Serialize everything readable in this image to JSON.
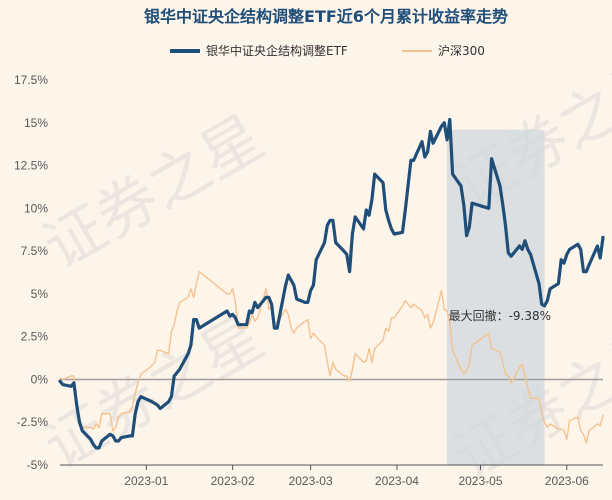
{
  "chart_data": {
    "type": "line",
    "title": "银华中证央企结构调整ETF近6个月累计收益率走势",
    "watermark": "证券之星",
    "colors": {
      "background": "#fdf4ea",
      "etf": "#1f4e79",
      "index": "#f5c28e",
      "drawdown_band": "#cfd8de",
      "zero_line": "#9e9e9e",
      "axis_text": "#595959"
    },
    "x_ticks": [
      "2023-01",
      "2023-02",
      "2023-03",
      "2023-04",
      "2023-05",
      "2023-06"
    ],
    "y_ticks": [
      "17.5%",
      "15%",
      "12.5%",
      "10%",
      "7.5%",
      "5%",
      "2.5%",
      "0%",
      "-2.5%",
      "-5%"
    ],
    "ylim": [
      -5,
      17.5
    ],
    "grid": false,
    "legend_position": "top",
    "annotation": "最大回撤：-9.38%",
    "drawdown_range": [
      "2023-04-19",
      "2023-05-24"
    ],
    "series": [
      {
        "name": "银华中证央企结构调整ETF",
        "points": [
          [
            "2022-12-01",
            -0.1
          ],
          [
            "2022-12-02",
            -0.3
          ],
          [
            "2022-12-05",
            -0.4
          ],
          [
            "2022-12-06",
            -0.2
          ],
          [
            "2022-12-07",
            -1.5
          ],
          [
            "2022-12-08",
            -2.5
          ],
          [
            "2022-12-09",
            -3.0
          ],
          [
            "2022-12-12",
            -3.5
          ],
          [
            "2022-12-13",
            -3.8
          ],
          [
            "2022-12-14",
            -4.0
          ],
          [
            "2022-12-15",
            -4.0
          ],
          [
            "2022-12-16",
            -3.6
          ],
          [
            "2022-12-19",
            -3.2
          ],
          [
            "2022-12-20",
            -3.3
          ],
          [
            "2022-12-21",
            -3.6
          ],
          [
            "2022-12-22",
            -3.6
          ],
          [
            "2022-12-23",
            -3.4
          ],
          [
            "2022-12-26",
            -3.3
          ],
          [
            "2022-12-27",
            -3.3
          ],
          [
            "2022-12-28",
            -2.0
          ],
          [
            "2022-12-29",
            -1.3
          ],
          [
            "2022-12-30",
            -1.0
          ],
          [
            "2023-01-03",
            -1.3
          ],
          [
            "2023-01-04",
            -1.4
          ],
          [
            "2023-01-05",
            -1.5
          ],
          [
            "2023-01-06",
            -1.7
          ],
          [
            "2023-01-09",
            -1.3
          ],
          [
            "2023-01-10",
            -1.0
          ],
          [
            "2023-01-11",
            0.2
          ],
          [
            "2023-01-12",
            0.4
          ],
          [
            "2023-01-13",
            0.6
          ],
          [
            "2023-01-16",
            1.5
          ],
          [
            "2023-01-17",
            2.0
          ],
          [
            "2023-01-18",
            3.5
          ],
          [
            "2023-01-19",
            3.5
          ],
          [
            "2023-01-20",
            3.0
          ],
          [
            "2023-01-30",
            4.0
          ],
          [
            "2023-01-31",
            3.7
          ],
          [
            "2023-02-01",
            3.8
          ],
          [
            "2023-02-02",
            3.6
          ],
          [
            "2023-02-03",
            3.2
          ],
          [
            "2023-02-06",
            3.2
          ],
          [
            "2023-02-07",
            4.0
          ],
          [
            "2023-02-08",
            3.9
          ],
          [
            "2023-02-09",
            4.5
          ],
          [
            "2023-02-10",
            4.2
          ],
          [
            "2023-02-13",
            4.8
          ],
          [
            "2023-02-14",
            4.8
          ],
          [
            "2023-02-15",
            4.4
          ],
          [
            "2023-02-16",
            3.0
          ],
          [
            "2023-02-17",
            3.0
          ],
          [
            "2023-02-20",
            5.5
          ],
          [
            "2023-02-21",
            6.1
          ],
          [
            "2023-02-22",
            5.8
          ],
          [
            "2023-02-23",
            5.5
          ],
          [
            "2023-02-24",
            4.7
          ],
          [
            "2023-02-27",
            4.5
          ],
          [
            "2023-02-28",
            4.5
          ],
          [
            "2023-03-01",
            5.2
          ],
          [
            "2023-03-02",
            5.5
          ],
          [
            "2023-03-03",
            7.0
          ],
          [
            "2023-03-06",
            8.0
          ],
          [
            "2023-03-07",
            9.0
          ],
          [
            "2023-03-08",
            9.3
          ],
          [
            "2023-03-09",
            9.3
          ],
          [
            "2023-03-10",
            8.0
          ],
          [
            "2023-03-13",
            7.5
          ],
          [
            "2023-03-14",
            7.3
          ],
          [
            "2023-03-15",
            6.3
          ],
          [
            "2023-03-16",
            8.5
          ],
          [
            "2023-03-17",
            9.5
          ],
          [
            "2023-03-20",
            8.8
          ],
          [
            "2023-03-21",
            9.9
          ],
          [
            "2023-03-22",
            9.6
          ],
          [
            "2023-03-23",
            10.5
          ],
          [
            "2023-03-24",
            12.0
          ],
          [
            "2023-03-27",
            11.5
          ],
          [
            "2023-03-28",
            9.9
          ],
          [
            "2023-03-29",
            9.3
          ],
          [
            "2023-03-30",
            8.8
          ],
          [
            "2023-03-31",
            8.5
          ],
          [
            "2023-04-03",
            8.6
          ],
          [
            "2023-04-04",
            9.9
          ],
          [
            "2023-04-06",
            12.8
          ],
          [
            "2023-04-07",
            12.8
          ],
          [
            "2023-04-10",
            13.9
          ],
          [
            "2023-04-11",
            13.0
          ],
          [
            "2023-04-12",
            13.3
          ],
          [
            "2023-04-13",
            14.5
          ],
          [
            "2023-04-14",
            13.8
          ],
          [
            "2023-04-17",
            14.8
          ],
          [
            "2023-04-18",
            15.0
          ],
          [
            "2023-04-19",
            14.0
          ],
          [
            "2023-04-20",
            15.2
          ],
          [
            "2023-04-21",
            12.0
          ],
          [
            "2023-04-24",
            11.3
          ],
          [
            "2023-04-25",
            10.2
          ],
          [
            "2023-04-26",
            8.4
          ],
          [
            "2023-04-27",
            8.9
          ],
          [
            "2023-04-28",
            10.3
          ],
          [
            "2023-05-04",
            10.0
          ],
          [
            "2023-05-05",
            12.9
          ],
          [
            "2023-05-08",
            11.3
          ],
          [
            "2023-05-09",
            10.2
          ],
          [
            "2023-05-10",
            9.0
          ],
          [
            "2023-05-11",
            7.4
          ],
          [
            "2023-05-12",
            7.2
          ],
          [
            "2023-05-15",
            7.8
          ],
          [
            "2023-05-16",
            7.6
          ],
          [
            "2023-05-17",
            8.1
          ],
          [
            "2023-05-18",
            7.6
          ],
          [
            "2023-05-19",
            7.3
          ],
          [
            "2023-05-22",
            5.6
          ],
          [
            "2023-05-23",
            4.4
          ],
          [
            "2023-05-24",
            4.3
          ],
          [
            "2023-05-25",
            4.6
          ],
          [
            "2023-05-26",
            5.3
          ],
          [
            "2023-05-29",
            5.6
          ],
          [
            "2023-05-30",
            7.0
          ],
          [
            "2023-05-31",
            6.8
          ],
          [
            "2023-06-01",
            7.3
          ],
          [
            "2023-06-02",
            7.6
          ],
          [
            "2023-06-05",
            7.9
          ],
          [
            "2023-06-06",
            7.6
          ],
          [
            "2023-06-07",
            6.3
          ],
          [
            "2023-06-08",
            6.3
          ],
          [
            "2023-06-09",
            6.7
          ],
          [
            "2023-06-12",
            7.8
          ],
          [
            "2023-06-13",
            7.1
          ],
          [
            "2023-06-14",
            8.3
          ]
        ]
      },
      {
        "name": "沪深300",
        "points": [
          [
            "2022-12-01",
            0.1
          ],
          [
            "2022-12-02",
            0.0
          ],
          [
            "2022-12-05",
            0.2
          ],
          [
            "2022-12-06",
            0.2
          ],
          [
            "2022-12-07",
            -1.2
          ],
          [
            "2022-12-08",
            -2.3
          ],
          [
            "2022-12-09",
            -2.8
          ],
          [
            "2022-12-12",
            -2.8
          ],
          [
            "2022-12-13",
            -2.9
          ],
          [
            "2022-12-14",
            -2.6
          ],
          [
            "2022-12-15",
            -2.8
          ],
          [
            "2022-12-16",
            -2.0
          ],
          [
            "2022-12-19",
            -2.0
          ],
          [
            "2022-12-20",
            -3.0
          ],
          [
            "2022-12-21",
            -2.8
          ],
          [
            "2022-12-22",
            -2.2
          ],
          [
            "2022-12-23",
            -2.0
          ],
          [
            "2022-12-26",
            -1.9
          ],
          [
            "2022-12-27",
            -1.6
          ],
          [
            "2022-12-28",
            -0.8
          ],
          [
            "2022-12-29",
            -0.2
          ],
          [
            "2022-12-30",
            0.3
          ],
          [
            "2023-01-03",
            0.8
          ],
          [
            "2023-01-04",
            1.0
          ],
          [
            "2023-01-05",
            1.7
          ],
          [
            "2023-01-06",
            1.7
          ],
          [
            "2023-01-09",
            1.5
          ],
          [
            "2023-01-10",
            2.8
          ],
          [
            "2023-01-11",
            3.2
          ],
          [
            "2023-01-12",
            4.0
          ],
          [
            "2023-01-13",
            4.5
          ],
          [
            "2023-01-16",
            4.8
          ],
          [
            "2023-01-17",
            5.3
          ],
          [
            "2023-01-18",
            4.8
          ],
          [
            "2023-01-19",
            5.6
          ],
          [
            "2023-01-20",
            6.3
          ],
          [
            "2023-01-30",
            5.0
          ],
          [
            "2023-01-31",
            5.0
          ],
          [
            "2023-02-01",
            5.3
          ],
          [
            "2023-02-02",
            4.5
          ],
          [
            "2023-02-03",
            3.0
          ],
          [
            "2023-02-06",
            3.0
          ],
          [
            "2023-02-07",
            3.3
          ],
          [
            "2023-02-08",
            3.8
          ],
          [
            "2023-02-09",
            3.4
          ],
          [
            "2023-02-10",
            3.6
          ],
          [
            "2023-02-13",
            5.3
          ],
          [
            "2023-02-14",
            4.1
          ],
          [
            "2023-02-15",
            4.3
          ],
          [
            "2023-02-16",
            3.3
          ],
          [
            "2023-02-17",
            3.3
          ],
          [
            "2023-02-20",
            4.1
          ],
          [
            "2023-02-21",
            3.8
          ],
          [
            "2023-02-22",
            3.0
          ],
          [
            "2023-02-23",
            2.7
          ],
          [
            "2023-02-24",
            3.0
          ],
          [
            "2023-02-27",
            3.4
          ],
          [
            "2023-02-28",
            3.5
          ],
          [
            "2023-03-01",
            2.4
          ],
          [
            "2023-03-02",
            2.7
          ],
          [
            "2023-03-03",
            2.5
          ],
          [
            "2023-03-06",
            2.0
          ],
          [
            "2023-03-07",
            1.0
          ],
          [
            "2023-03-08",
            0.2
          ],
          [
            "2023-03-09",
            1.0
          ],
          [
            "2023-03-10",
            0.6
          ],
          [
            "2023-03-13",
            0.2
          ],
          [
            "2023-03-14",
            0.2
          ],
          [
            "2023-03-15",
            -0.1
          ],
          [
            "2023-03-16",
            0.6
          ],
          [
            "2023-03-17",
            1.5
          ],
          [
            "2023-03-20",
            1.0
          ],
          [
            "2023-03-21",
            1.1
          ],
          [
            "2023-03-22",
            1.8
          ],
          [
            "2023-03-23",
            1.0
          ],
          [
            "2023-03-24",
            1.8
          ],
          [
            "2023-03-27",
            2.3
          ],
          [
            "2023-03-28",
            3.0
          ],
          [
            "2023-03-29",
            2.8
          ],
          [
            "2023-03-30",
            3.6
          ],
          [
            "2023-03-31",
            3.6
          ],
          [
            "2023-04-03",
            4.3
          ],
          [
            "2023-04-04",
            4.6
          ],
          [
            "2023-04-06",
            4.2
          ],
          [
            "2023-04-07",
            4.4
          ],
          [
            "2023-04-10",
            4.0
          ],
          [
            "2023-04-11",
            3.6
          ],
          [
            "2023-04-12",
            3.8
          ],
          [
            "2023-04-13",
            3.0
          ],
          [
            "2023-04-14",
            3.3
          ],
          [
            "2023-04-17",
            5.2
          ],
          [
            "2023-04-18",
            4.1
          ],
          [
            "2023-04-19",
            4.0
          ],
          [
            "2023-04-20",
            3.3
          ],
          [
            "2023-04-21",
            1.7
          ],
          [
            "2023-04-24",
            0.6
          ],
          [
            "2023-04-25",
            0.3
          ],
          [
            "2023-04-26",
            0.5
          ],
          [
            "2023-04-27",
            0.9
          ],
          [
            "2023-04-28",
            2.0
          ],
          [
            "2023-05-04",
            2.7
          ],
          [
            "2023-05-05",
            1.8
          ],
          [
            "2023-05-08",
            1.6
          ],
          [
            "2023-05-09",
            1.0
          ],
          [
            "2023-05-10",
            0.3
          ],
          [
            "2023-05-11",
            0.2
          ],
          [
            "2023-05-12",
            -0.2
          ],
          [
            "2023-05-15",
            0.7
          ],
          [
            "2023-05-16",
            0.9
          ],
          [
            "2023-05-17",
            0.2
          ],
          [
            "2023-05-18",
            -0.5
          ],
          [
            "2023-05-19",
            -1.1
          ],
          [
            "2023-05-22",
            -1.1
          ],
          [
            "2023-05-23",
            -2.0
          ],
          [
            "2023-05-24",
            -2.5
          ],
          [
            "2023-05-25",
            -2.8
          ],
          [
            "2023-05-26",
            -2.6
          ],
          [
            "2023-05-29",
            -2.9
          ],
          [
            "2023-05-30",
            -2.9
          ],
          [
            "2023-05-31",
            -3.0
          ],
          [
            "2023-06-01",
            -3.5
          ],
          [
            "2023-06-02",
            -2.4
          ],
          [
            "2023-06-05",
            -2.2
          ],
          [
            "2023-06-06",
            -3.0
          ],
          [
            "2023-06-07",
            -3.2
          ],
          [
            "2023-06-08",
            -3.7
          ],
          [
            "2023-06-09",
            -3.0
          ],
          [
            "2023-06-12",
            -2.6
          ],
          [
            "2023-06-13",
            -2.7
          ],
          [
            "2023-06-14",
            -2.1
          ]
        ]
      }
    ]
  }
}
